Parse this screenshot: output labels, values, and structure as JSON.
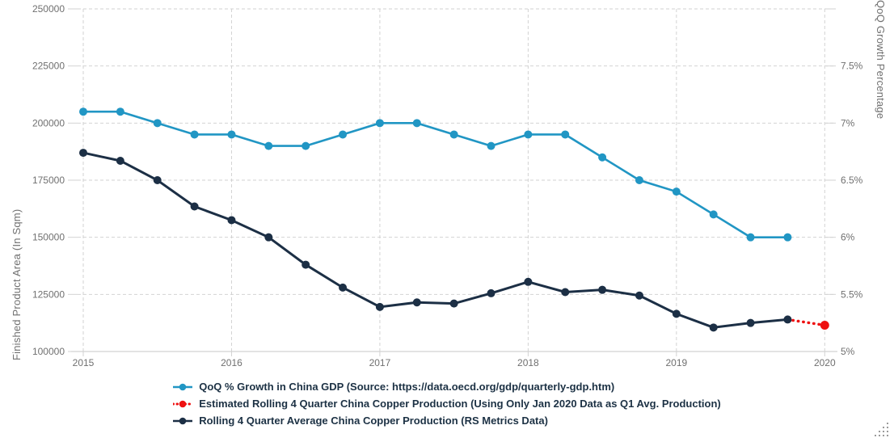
{
  "chart_data": {
    "type": "line",
    "x_axis": {
      "quarters_per_year": 4,
      "years": [
        {
          "label": "2015",
          "quarter_index": 0
        },
        {
          "label": "2016",
          "quarter_index": 4
        },
        {
          "label": "2017",
          "quarter_index": 8
        },
        {
          "label": "2018",
          "quarter_index": 12
        },
        {
          "label": "2019",
          "quarter_index": 16
        },
        {
          "label": "2020",
          "quarter_index": 20
        }
      ]
    },
    "left_axis": {
      "title": "Finished Product Area (In Sqm)",
      "min": 100000,
      "max": 250000,
      "ticks": [
        {
          "value": 250000,
          "label": "250000"
        },
        {
          "value": 225000,
          "label": "225000"
        },
        {
          "value": 200000,
          "label": "200000"
        },
        {
          "value": 175000,
          "label": "175000"
        },
        {
          "value": 150000,
          "label": "150000"
        },
        {
          "value": 125000,
          "label": "125000"
        },
        {
          "value": 100000,
          "label": "100000"
        }
      ]
    },
    "right_axis": {
      "title": "QoQ Growth Percentage",
      "min": 5,
      "max": 8,
      "ticks": [
        {
          "value": 7.5,
          "label": "7.5%"
        },
        {
          "value": 7,
          "label": "7%"
        },
        {
          "value": 6.5,
          "label": "6.5%"
        },
        {
          "value": 6,
          "label": "6%"
        },
        {
          "value": 5.5,
          "label": "5.5%"
        },
        {
          "value": 5,
          "label": "5%"
        }
      ]
    },
    "series": [
      {
        "name": "QoQ % Growth in China GDP (Source: https://data.oecd.org/gdp/quarterly-gdp.htm)",
        "axis": "right",
        "color": "#2196c4",
        "line_style": "solid",
        "x_quarter_indices": [
          0,
          1,
          2,
          3,
          4,
          5,
          6,
          7,
          8,
          9,
          10,
          11,
          12,
          13,
          14,
          15,
          16,
          17,
          18,
          19
        ],
        "values": [
          7.1,
          7.1,
          7.0,
          6.9,
          6.9,
          6.8,
          6.8,
          6.9,
          7.0,
          7.0,
          6.9,
          6.8,
          6.9,
          6.9,
          6.7,
          6.5,
          6.4,
          6.2,
          6.0,
          6.0
        ]
      },
      {
        "name": "Estimated Rolling 4 Quarter China Copper Production (Using Only Jan 2020 Data as Q1 Avg. Production)",
        "axis": "left",
        "color": "#ee1111",
        "line_style": "dotted",
        "x_quarter_indices": [
          19,
          20
        ],
        "values": [
          114000,
          111500
        ]
      },
      {
        "name": "Rolling 4 Quarter Average China Copper Production (RS Metrics Data)",
        "axis": "left",
        "color": "#1c2f45",
        "line_style": "solid",
        "x_quarter_indices": [
          0,
          1,
          2,
          3,
          4,
          5,
          6,
          7,
          8,
          9,
          10,
          11,
          12,
          13,
          14,
          15,
          16,
          17,
          18,
          19
        ],
        "values": [
          187000,
          183500,
          175000,
          163500,
          157500,
          150000,
          138000,
          128000,
          119500,
          121500,
          121000,
          125500,
          130500,
          126000,
          127000,
          124500,
          116500,
          110500,
          112500,
          114000
        ]
      }
    ]
  },
  "colors": {
    "grid": "#d2d2d2",
    "axis_text": "#707070",
    "legend_text": "#1c3144",
    "background": "#ffffff"
  }
}
